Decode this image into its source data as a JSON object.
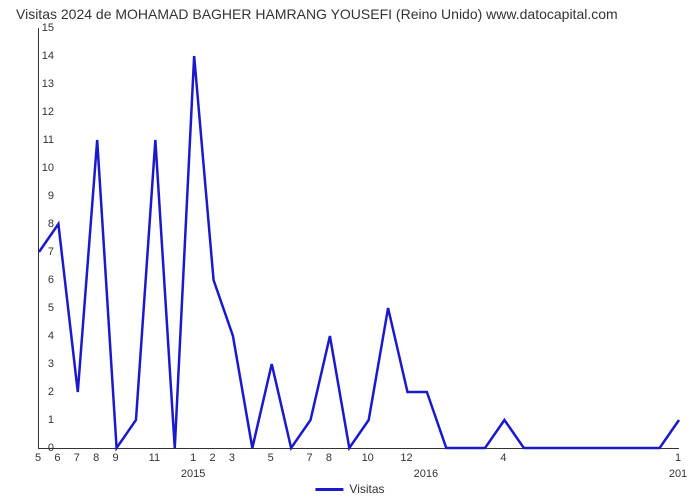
{
  "title": "Visitas 2024 de MOHAMAD BAGHER HAMRANG YOUSEFI (Reino Unido) www.datocapital.com",
  "chart": {
    "type": "line",
    "background_color": "#ffffff",
    "axis_color": "#333333",
    "title_fontsize": 14,
    "tick_fontsize": 11,
    "line_color": "#1a1acc",
    "line_width": 2.5,
    "ylim": [
      0,
      15
    ],
    "xlim": [
      0,
      33
    ],
    "yticks": [
      0,
      1,
      2,
      3,
      4,
      5,
      6,
      7,
      8,
      9,
      10,
      11,
      12,
      13,
      14,
      15
    ],
    "xticks": [
      {
        "pos": 0,
        "label": "5"
      },
      {
        "pos": 1,
        "label": "6"
      },
      {
        "pos": 2,
        "label": "7"
      },
      {
        "pos": 3,
        "label": "8"
      },
      {
        "pos": 4,
        "label": "9"
      },
      {
        "pos": 6,
        "label": "11"
      },
      {
        "pos": 8,
        "label": "1"
      },
      {
        "pos": 9,
        "label": "2"
      },
      {
        "pos": 10,
        "label": "3"
      },
      {
        "pos": 12,
        "label": "5"
      },
      {
        "pos": 14,
        "label": "7"
      },
      {
        "pos": 15,
        "label": "8"
      },
      {
        "pos": 17,
        "label": "10"
      },
      {
        "pos": 19,
        "label": "12"
      },
      {
        "pos": 24,
        "label": "4"
      },
      {
        "pos": 33,
        "label": "1"
      }
    ],
    "xticks_major": [
      {
        "pos": 8,
        "label": "2015"
      },
      {
        "pos": 20,
        "label": "2016"
      },
      {
        "pos": 33,
        "label": "201"
      }
    ],
    "values": [
      7,
      8,
      2,
      11,
      0,
      1,
      11,
      0,
      14,
      6,
      4,
      0,
      3,
      0,
      1,
      4,
      0,
      1,
      5,
      2,
      2,
      0,
      0,
      0,
      1,
      0,
      0,
      0,
      0,
      0,
      0,
      0,
      0,
      1
    ],
    "legend_label": "Visitas"
  }
}
